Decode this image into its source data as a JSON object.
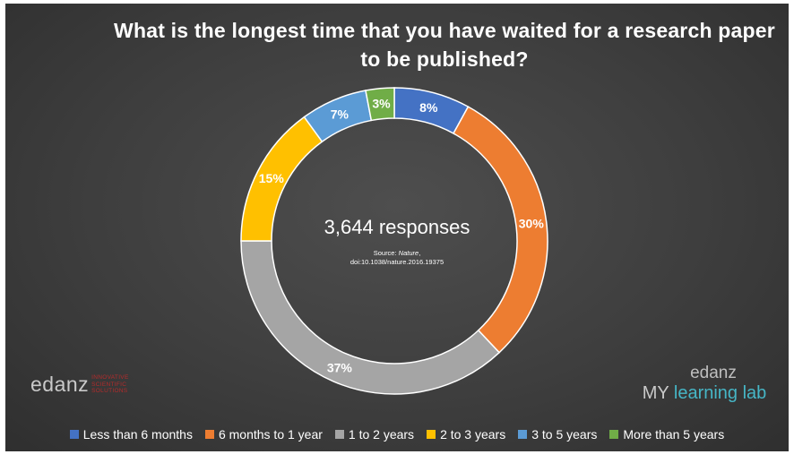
{
  "chart_data": {
    "type": "pie",
    "variant": "donut",
    "title": "What is the longest time that you have waited for a research paper to be published?",
    "center_label": "3,644 responses",
    "source": {
      "prefix": "Source:",
      "name": "Nature",
      "doi": "doi:10.1038/nature.2016.19375"
    },
    "slices": [
      {
        "label": "Less than 6 months",
        "value": 8,
        "display": "8%",
        "color": "#4472c4"
      },
      {
        "label": "6 months to 1 year",
        "value": 30,
        "display": "30%",
        "color": "#ed7d31"
      },
      {
        "label": "1 to 2 years",
        "value": 37,
        "display": "37%",
        "color": "#a5a5a5"
      },
      {
        "label": "2 to 3 years",
        "value": 15,
        "display": "15%",
        "color": "#ffc000"
      },
      {
        "label": "3 to 5 years",
        "value": 7,
        "display": "7%",
        "color": "#5b9bd5"
      },
      {
        "label": "More than 5 years",
        "value": 3,
        "display": "3%",
        "color": "#70ad47"
      }
    ],
    "legend_position": "bottom"
  },
  "logos": {
    "left": {
      "word": "edanz",
      "tagline": [
        "INNOVATIVE",
        "SCIENTIFIC",
        "SOLUTIONS"
      ]
    },
    "right": {
      "top": "edanz",
      "my": "MY",
      "rest": "learning lab"
    }
  },
  "colors": {
    "background": "#3e3e3e",
    "text": "#ffffff",
    "logo_accent_red": "#b52b2b",
    "logo_accent_teal": "#46b6c6"
  }
}
